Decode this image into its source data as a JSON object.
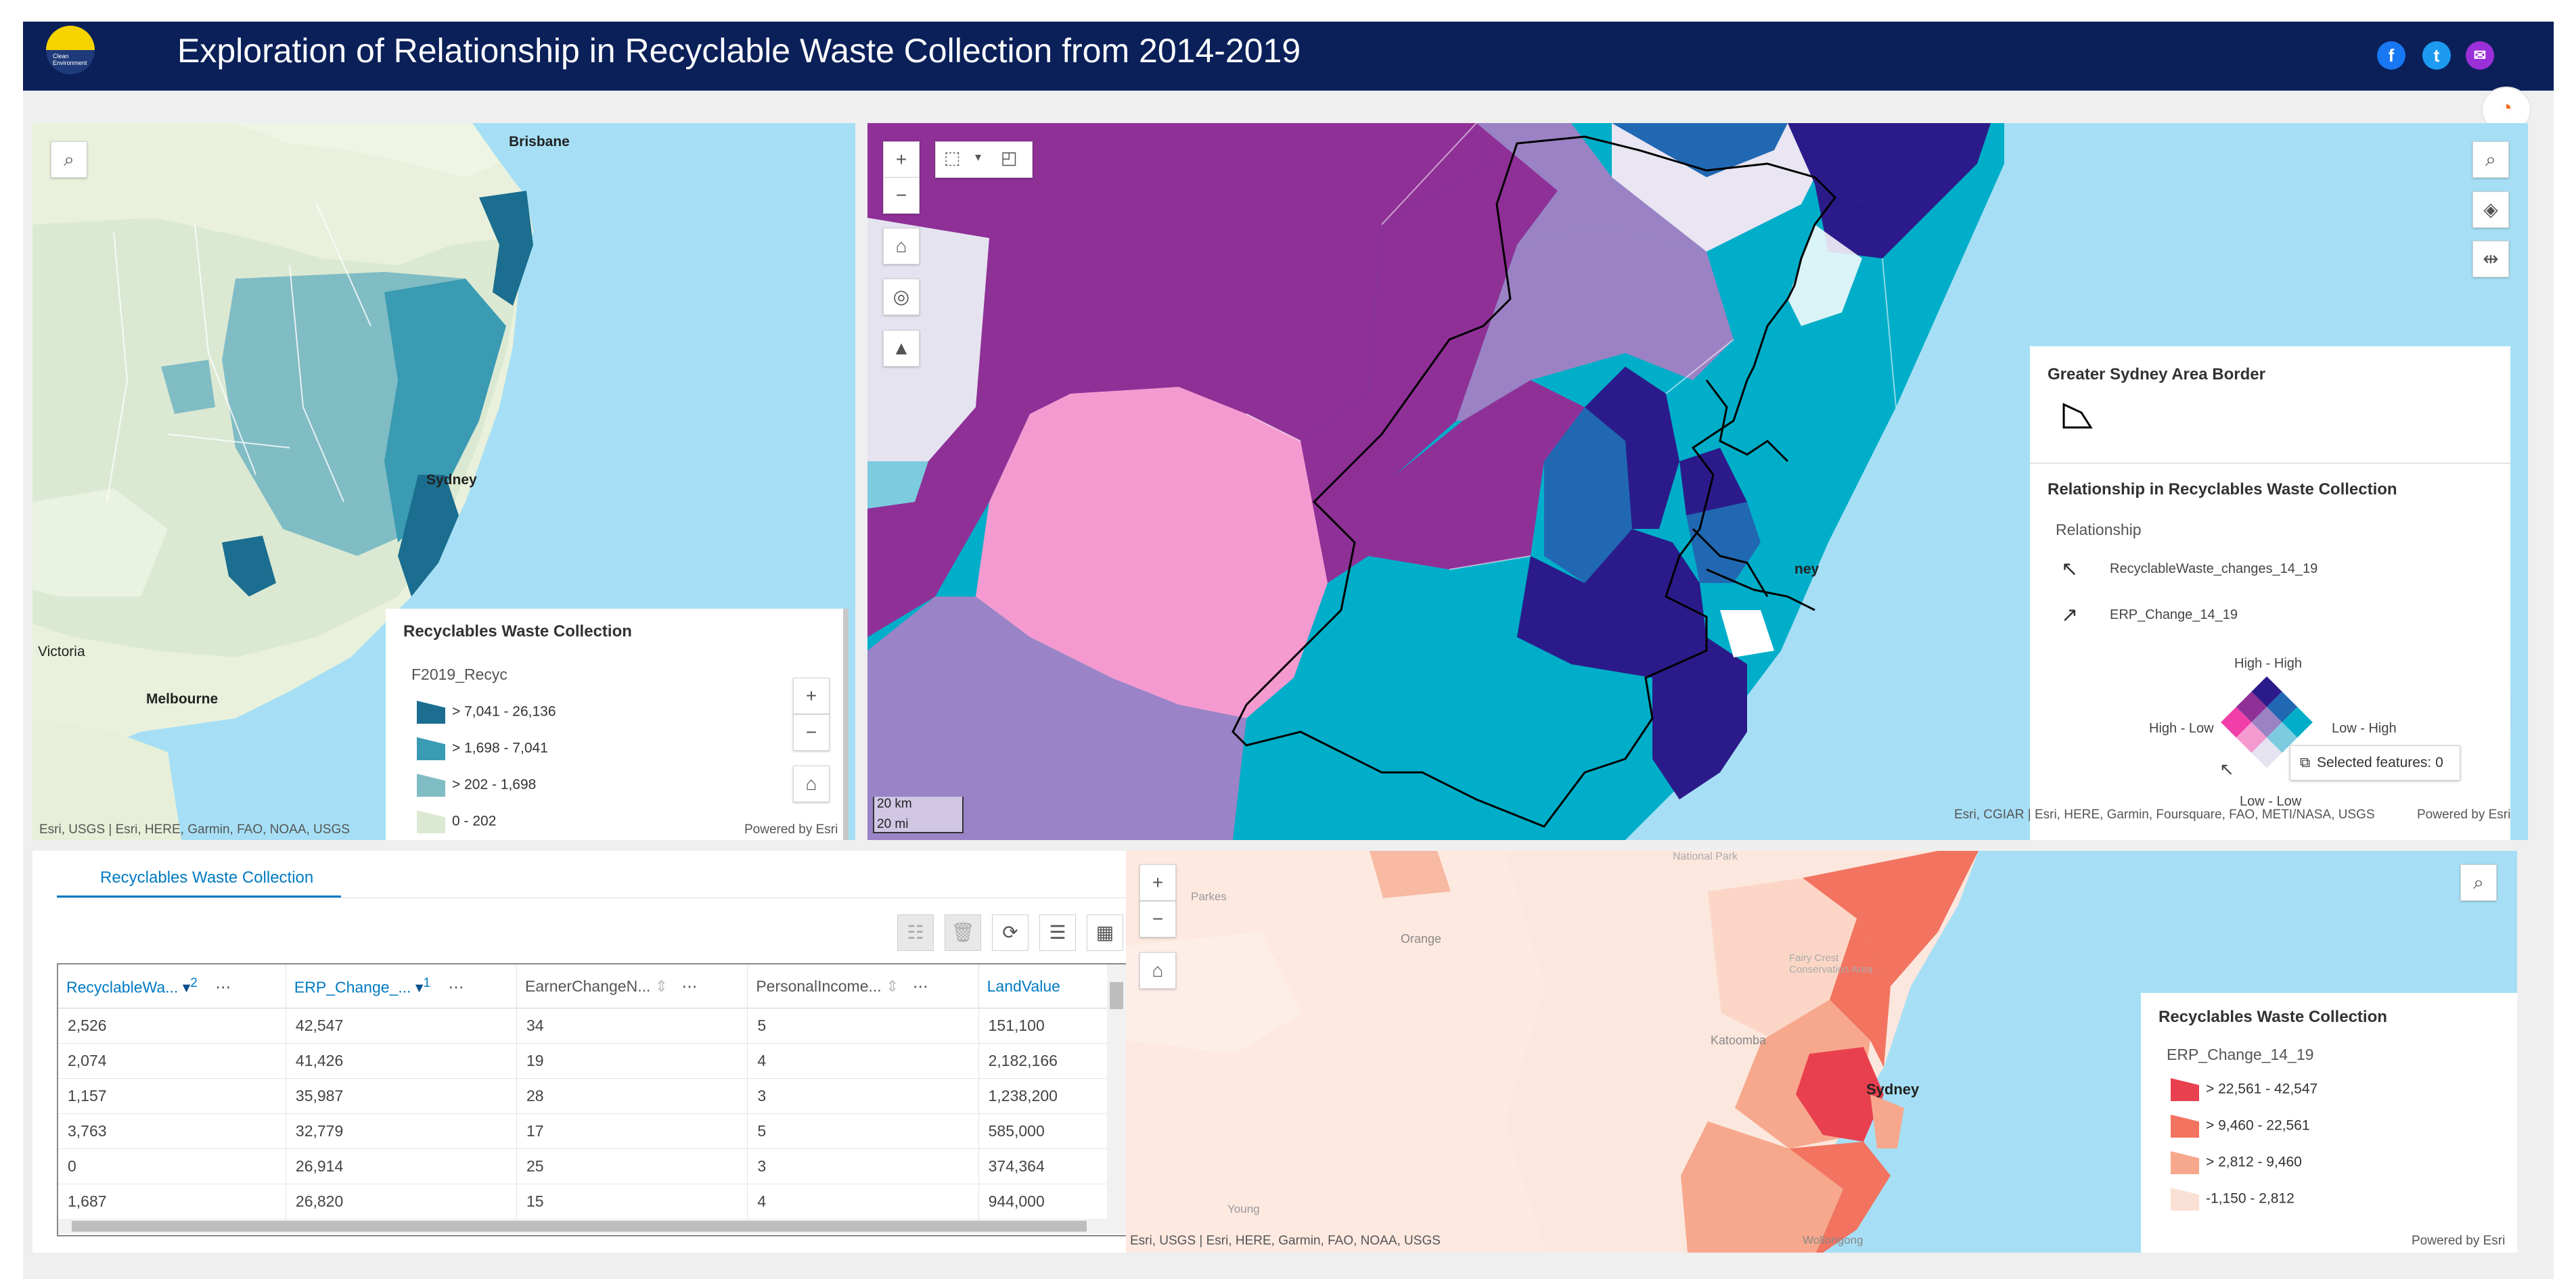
{
  "header": {
    "title": "Exploration of Relationship in Recyclable Waste Collection from 2014-2019",
    "logo_text": "Clean Environment",
    "social": [
      "f",
      "t",
      "✉"
    ]
  },
  "left_map": {
    "cities": {
      "brisbane": "Brisbane",
      "sydney": "Sydney",
      "victoria": "Victoria",
      "melbourne": "Melbourne"
    },
    "legend": {
      "title": "Recyclables Waste Collection",
      "field": "F2019_Recyc",
      "classes": [
        {
          "label": "> 7,041 - 26,136",
          "color": "#1b6e8f"
        },
        {
          "label": "> 1,698 - 7,041",
          "color": "#3a9bb2"
        },
        {
          "label": "> 202 - 1,698",
          "color": "#80bcc4"
        },
        {
          "label": "0 - 202",
          "color": "#dbe9d3"
        }
      ]
    },
    "attribution": "Esri, USGS | Esri, HERE, Garmin, FAO, NOAA, USGS",
    "powered": "Powered by Esri"
  },
  "main_map": {
    "label_sydney": "ney",
    "scale": {
      "km": "20 km",
      "mi": "20 mi"
    },
    "legend": {
      "border_title": "Greater Sydney Area Border",
      "rel_title": "Relationship in Recyclables Waste Collection",
      "rel_sub": "Relationship",
      "axis1": "RecyclableWaste_changes_14_19",
      "axis2": "ERP_Change_14_19",
      "high_high": "High - High",
      "high_low": "High - Low",
      "low_high": "Low - High",
      "low_low": "Low - Low"
    },
    "selected": "Selected features: 0",
    "attribution": "Esri, CGIAR | Esri, HERE, Garmin, Foursquare, FAO, METI/NASA, USGS",
    "powered": "Powered by Esri"
  },
  "table": {
    "tab": "Recyclables Waste Collection",
    "columns": [
      {
        "label": "RecyclableWa...",
        "sort": "2"
      },
      {
        "label": "ERP_Change_...",
        "sort": "1"
      },
      {
        "label": "EarnerChangeN...",
        "sort": ""
      },
      {
        "label": "PersonalIncome...",
        "sort": ""
      },
      {
        "label": "LandValue",
        "sort": ""
      }
    ],
    "rows": [
      [
        "2,526",
        "42,547",
        "34",
        "5",
        "151,100"
      ],
      [
        "2,074",
        "41,426",
        "19",
        "4",
        "2,182,166"
      ],
      [
        "1,157",
        "35,987",
        "28",
        "3",
        "1,238,200"
      ],
      [
        "3,763",
        "32,779",
        "17",
        "5",
        "585,000"
      ],
      [
        "0",
        "26,914",
        "25",
        "3",
        "374,364"
      ],
      [
        "1,687",
        "26,820",
        "15",
        "4",
        "944,000"
      ]
    ]
  },
  "bottom_map": {
    "places": {
      "parkes": "Parkes",
      "orange": "Orange",
      "katoomba": "Katoomba",
      "young": "Young",
      "sydney": "Sydney",
      "wollongong": "Wollongong",
      "national_park": "National Park",
      "fairy": "Fairy Crest Conservation Area"
    },
    "legend": {
      "title": "Recyclables Waste Collection",
      "field": "ERP_Change_14_19",
      "classes": [
        {
          "label": "> 22,561 - 42,547",
          "color": "#e8404f"
        },
        {
          "label": "> 9,460 - 22,561",
          "color": "#f2735f"
        },
        {
          "label": "> 2,812 - 9,460",
          "color": "#f7a88c"
        },
        {
          "label": "-1,150 - 2,812",
          "color": "#fbe0d6"
        }
      ]
    },
    "attribution": "Esri, USGS | Esri, HERE, Garmin, FAO, NOAA, USGS",
    "powered": "Powered by Esri"
  },
  "colors": {
    "header": "#0b2059",
    "accent": "#007ac2",
    "sea": "#a6dff5"
  }
}
